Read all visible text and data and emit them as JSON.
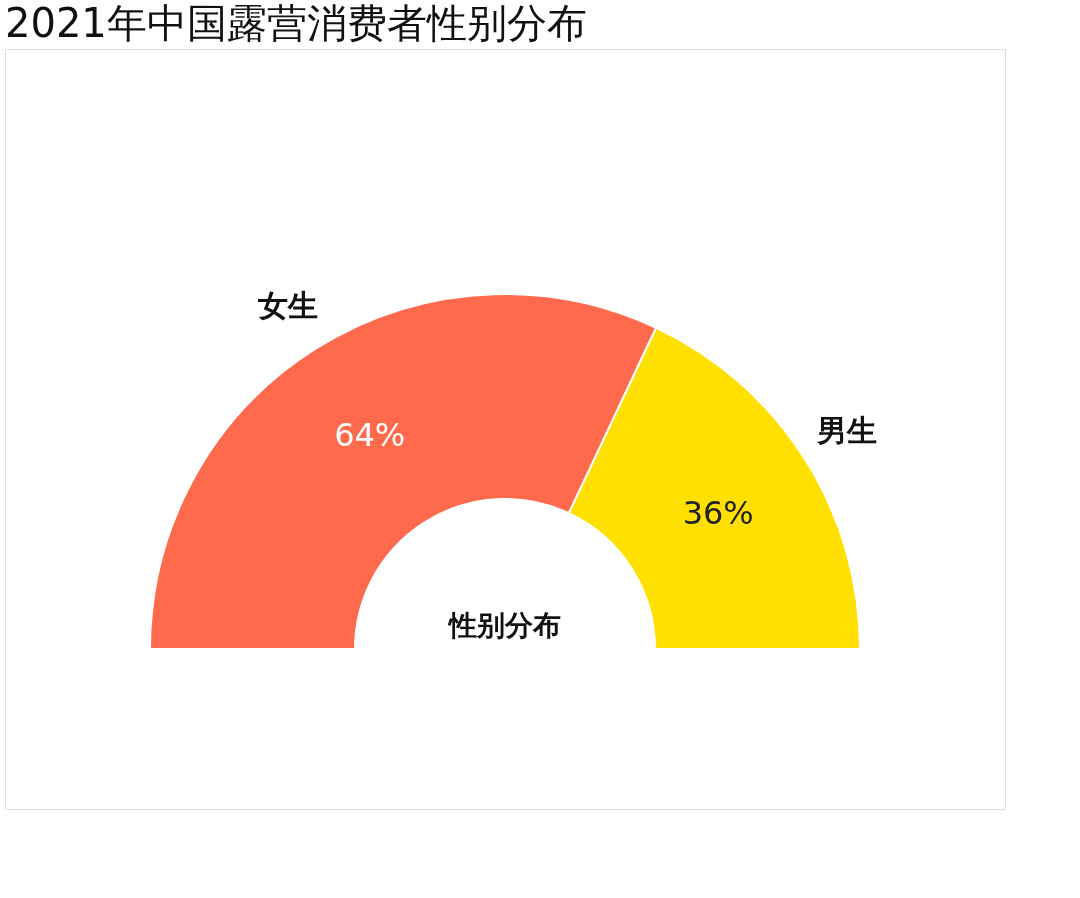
{
  "chart_data": {
    "type": "donut",
    "title": "2021年中国露营消费者性别分布",
    "categories": [
      "女生",
      "男生"
    ],
    "values": [
      64,
      36
    ],
    "colors": [
      "#ff6a4d",
      "#ffe000"
    ],
    "value_labels": [
      "64%",
      "36%"
    ],
    "annotations": [
      "性别分布"
    ],
    "legend": false
  }
}
